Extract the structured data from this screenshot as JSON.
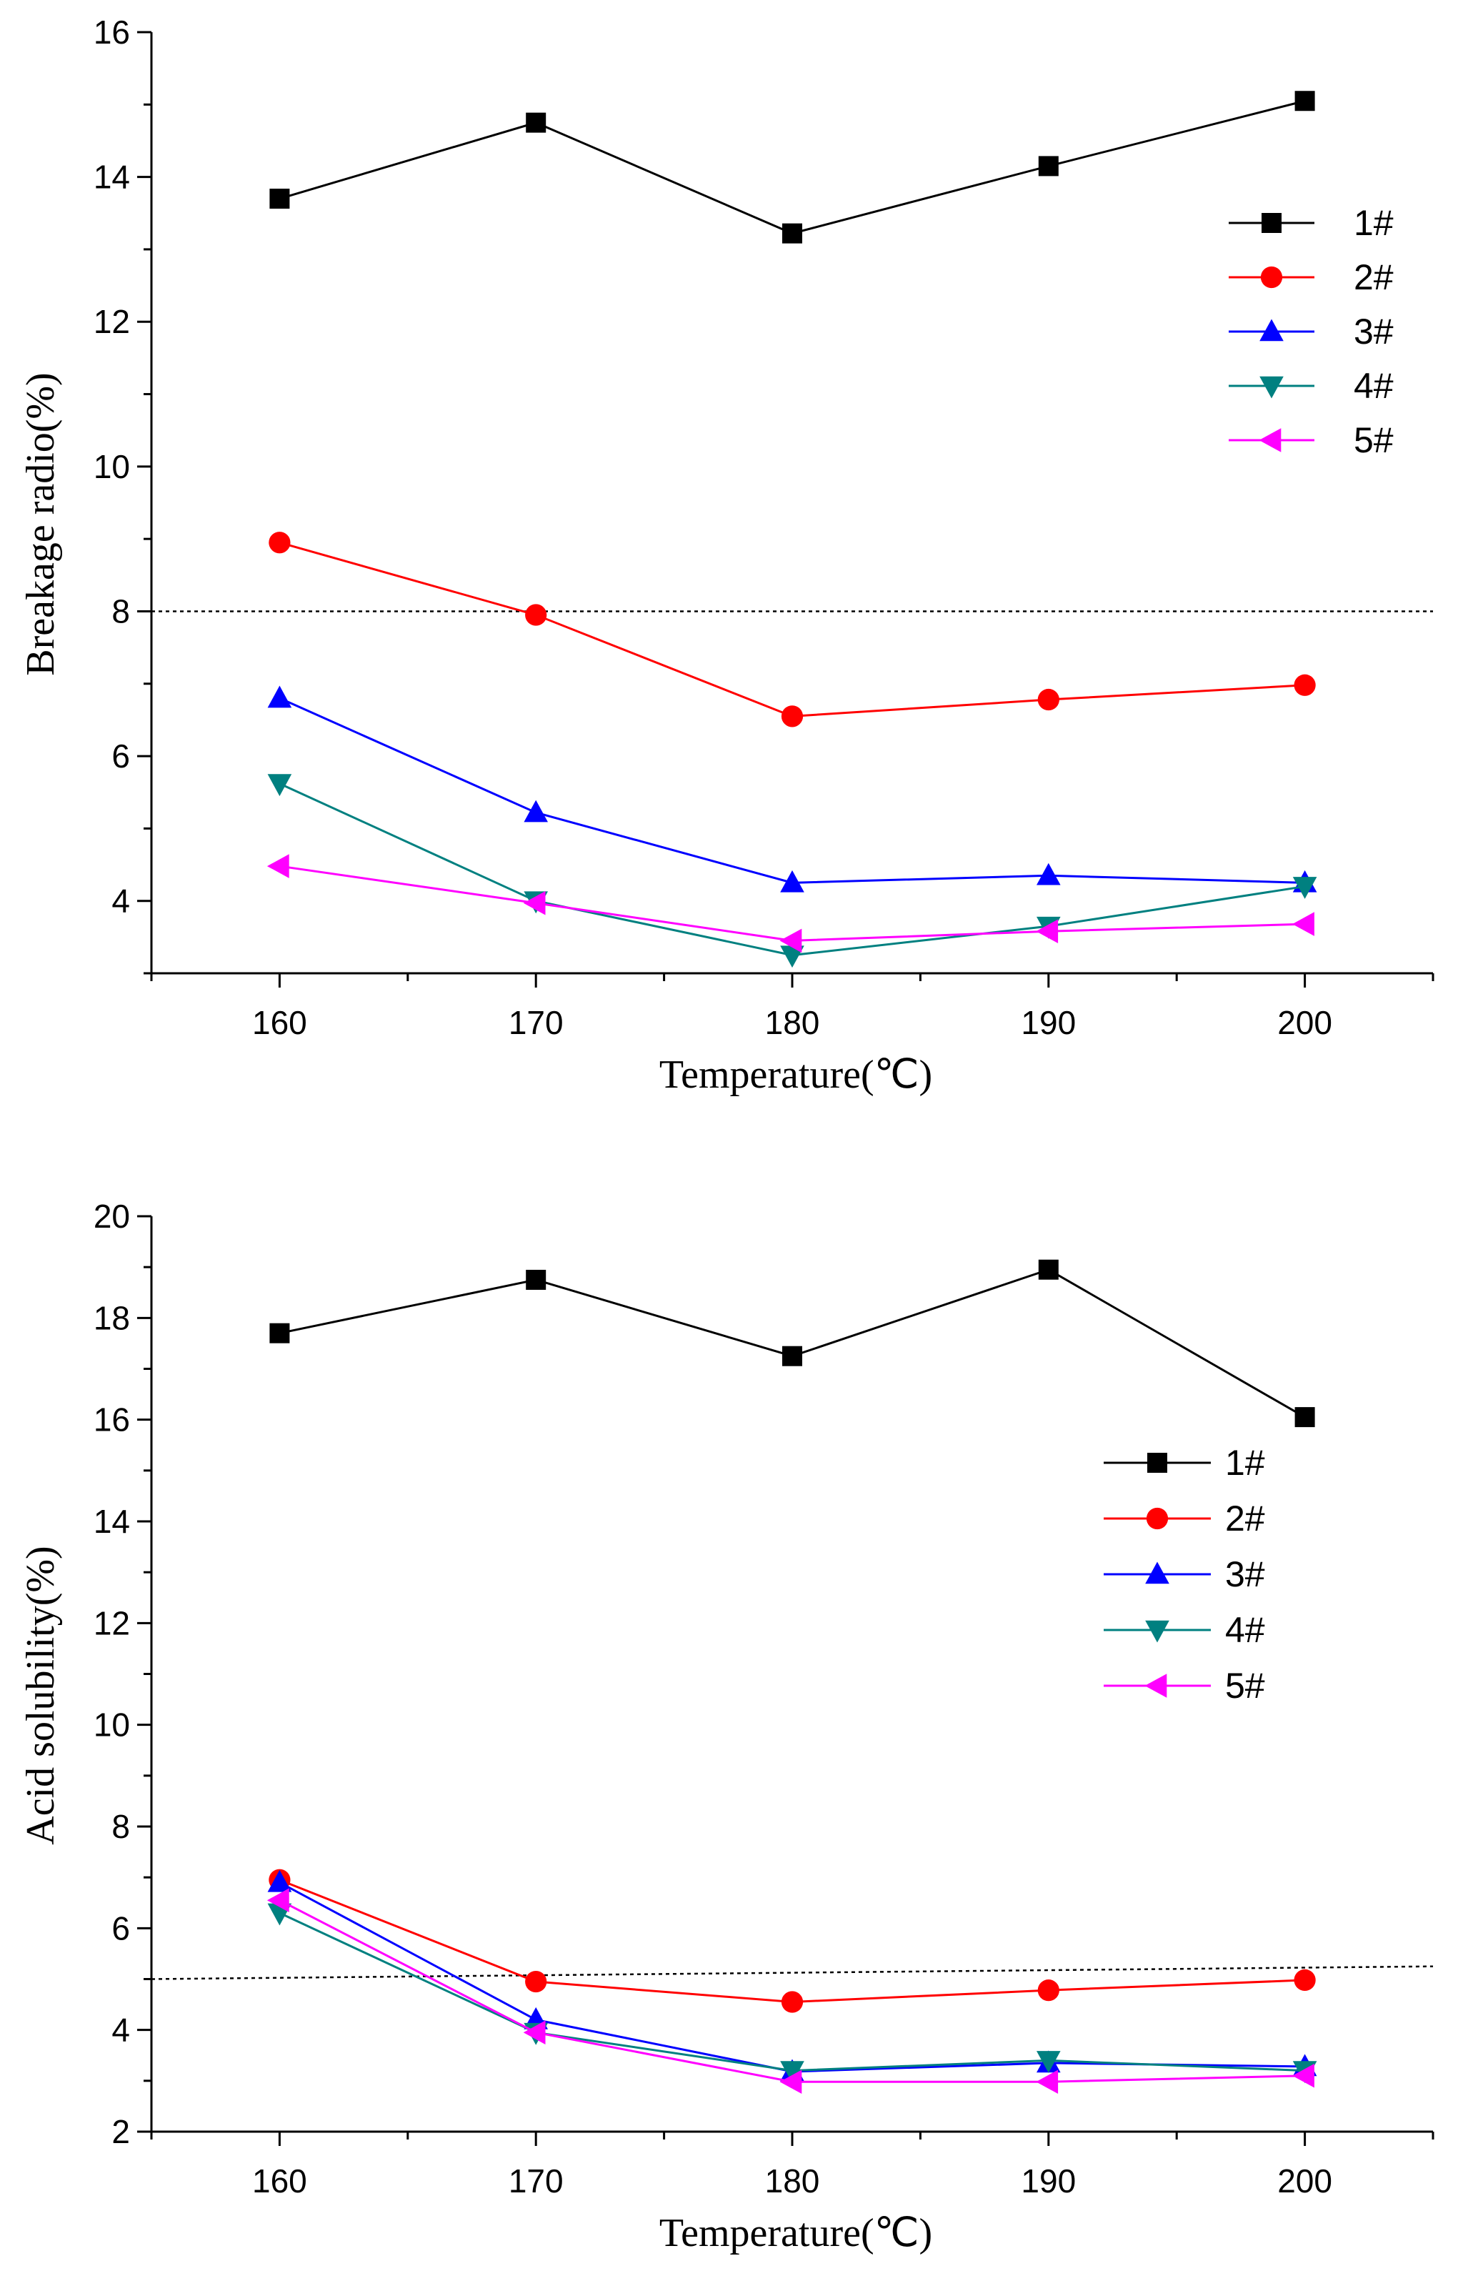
{
  "chart_data": [
    {
      "type": "line",
      "title": "",
      "xlabel": "Temperature(℃)",
      "ylabel": "Breakage radio(%)",
      "x": [
        160,
        170,
        180,
        190,
        200
      ],
      "xticks": [
        160,
        170,
        180,
        190,
        200
      ],
      "xlim": [
        155,
        205
      ],
      "ylim": [
        3,
        16
      ],
      "yticks": [
        4,
        6,
        8,
        10,
        12,
        14,
        16
      ],
      "reference_line": 8,
      "grid": false,
      "legend_position": "top-right",
      "series": [
        {
          "name": "1#",
          "color": "#000000",
          "marker": "square",
          "values": [
            13.7,
            14.75,
            13.22,
            14.15,
            15.05
          ]
        },
        {
          "name": "2#",
          "color": "#ff0000",
          "marker": "circle",
          "values": [
            8.95,
            7.95,
            6.55,
            6.78,
            6.98
          ]
        },
        {
          "name": "3#",
          "color": "#0000ff",
          "marker": "triangle-up",
          "values": [
            6.8,
            5.22,
            4.25,
            4.35,
            4.25
          ]
        },
        {
          "name": "4#",
          "color": "#008080",
          "marker": "triangle-down",
          "values": [
            5.62,
            4.0,
            3.25,
            3.65,
            4.2
          ]
        },
        {
          "name": "5#",
          "color": "#ff00ff",
          "marker": "triangle-left",
          "values": [
            4.48,
            3.97,
            3.45,
            3.58,
            3.68
          ]
        }
      ]
    },
    {
      "type": "line",
      "title": "",
      "xlabel": "Temperature(℃)",
      "ylabel": "Acid solubility(%)",
      "x": [
        160,
        170,
        180,
        190,
        200
      ],
      "xticks": [
        160,
        170,
        180,
        190,
        200
      ],
      "xlim": [
        155,
        205
      ],
      "ylim": [
        2,
        20
      ],
      "yticks": [
        2,
        4,
        6,
        8,
        10,
        12,
        14,
        16,
        18,
        20
      ],
      "reference_line": [
        [
          155,
          5.0
        ],
        [
          205,
          5.25
        ]
      ],
      "grid": false,
      "legend_position": "center-right",
      "series": [
        {
          "name": "1#",
          "color": "#000000",
          "marker": "square",
          "values": [
            17.7,
            18.75,
            17.25,
            18.95,
            16.05
          ]
        },
        {
          "name": "2#",
          "color": "#ff0000",
          "marker": "circle",
          "values": [
            6.95,
            4.95,
            4.55,
            4.78,
            4.98
          ]
        },
        {
          "name": "3#",
          "color": "#0000ff",
          "marker": "triangle-up",
          "values": [
            6.9,
            4.2,
            3.18,
            3.35,
            3.28
          ]
        },
        {
          "name": "4#",
          "color": "#008080",
          "marker": "triangle-down",
          "values": [
            6.3,
            3.95,
            3.2,
            3.4,
            3.2
          ]
        },
        {
          "name": "5#",
          "color": "#ff00ff",
          "marker": "triangle-left",
          "values": [
            6.55,
            3.95,
            2.98,
            2.98,
            3.1
          ]
        }
      ]
    }
  ]
}
